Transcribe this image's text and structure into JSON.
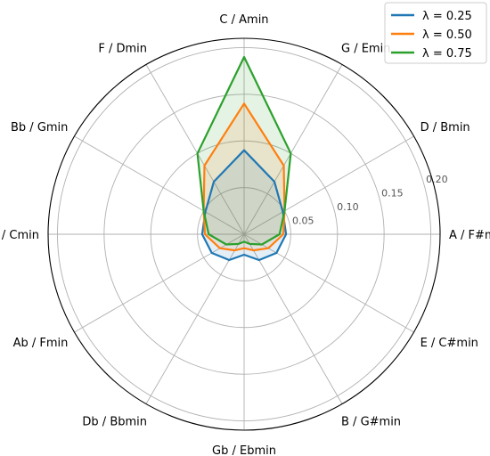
{
  "chart_data": {
    "type": "radar",
    "categories": [
      "C / Amin",
      "G / Emin",
      "D / Bmin",
      "A / F#min",
      "E / C#min",
      "B / G#min",
      "Gb / Ebmin",
      "Db / Bbmin",
      "Ab / Fmin",
      "Eb / Cmin",
      "Bb / Gmin",
      "F / Dmin"
    ],
    "r_ticks": [
      0.05,
      0.1,
      0.15,
      0.2
    ],
    "r_tick_labels": [
      "0.05",
      "0.10",
      "0.15",
      "0.20"
    ],
    "r_max": 0.21,
    "grid": true,
    "legend_position": "top-right",
    "series": [
      {
        "name": "λ = 0.25",
        "color": "#1f77b4",
        "values": [
          0.09,
          0.065,
          0.048,
          0.045,
          0.04,
          0.032,
          0.022,
          0.032,
          0.04,
          0.045,
          0.048,
          0.065
        ]
      },
      {
        "name": "λ = 0.50",
        "color": "#ff7f0e",
        "values": [
          0.14,
          0.085,
          0.05,
          0.042,
          0.03,
          0.02,
          0.015,
          0.02,
          0.03,
          0.042,
          0.05,
          0.085
        ]
      },
      {
        "name": "λ = 0.75",
        "color": "#2ca02c",
        "values": [
          0.19,
          0.1,
          0.05,
          0.038,
          0.022,
          0.012,
          0.008,
          0.012,
          0.022,
          0.038,
          0.05,
          0.1
        ]
      }
    ]
  }
}
